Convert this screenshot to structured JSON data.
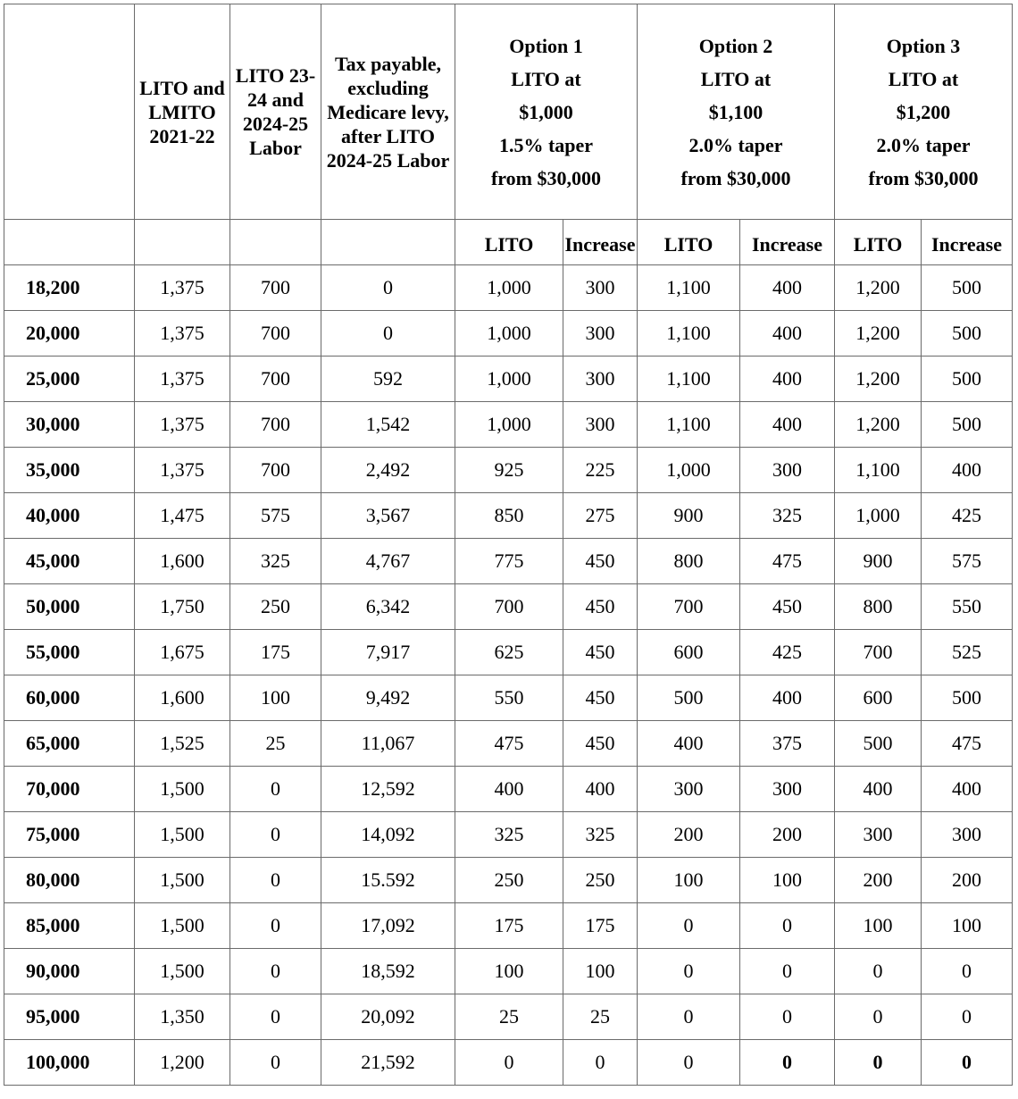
{
  "header": {
    "columns": [
      "",
      "LITO and LMITO 2021-22",
      "LITO 23-24 and 2024-25 Labor",
      "Tax payable, excluding Medicare levy, after LITO 2024-25 Labor"
    ],
    "options": [
      {
        "title": "Option 1",
        "lines": [
          "LITO at",
          "$1,000",
          "1.5% taper",
          "from $30,000"
        ]
      },
      {
        "title": "Option 2",
        "lines": [
          "LITO at",
          "$1,100",
          "2.0% taper",
          "from $30,000"
        ]
      },
      {
        "title": "Option 3",
        "lines": [
          "LITO at",
          "$1,200",
          "2.0% taper",
          "from $30,000"
        ]
      }
    ],
    "sub_labels": [
      "LITO",
      "Increase",
      "LITO",
      "Increase",
      "LITO",
      "Increase"
    ]
  },
  "rows": [
    {
      "cells": [
        "18,200",
        "1,375",
        "700",
        "0",
        "1,000",
        "300",
        "1,100",
        "400",
        "1,200",
        "500"
      ]
    },
    {
      "cells": [
        "20,000",
        "1,375",
        "700",
        "0",
        "1,000",
        "300",
        "1,100",
        "400",
        "1,200",
        "500"
      ]
    },
    {
      "cells": [
        "25,000",
        "1,375",
        "700",
        "592",
        "1,000",
        "300",
        "1,100",
        "400",
        "1,200",
        "500"
      ]
    },
    {
      "cells": [
        "30,000",
        "1,375",
        "700",
        "1,542",
        "1,000",
        "300",
        "1,100",
        "400",
        "1,200",
        "500"
      ]
    },
    {
      "cells": [
        "35,000",
        "1,375",
        "700",
        "2,492",
        "925",
        "225",
        "1,000",
        "300",
        "1,100",
        "400"
      ]
    },
    {
      "cells": [
        "40,000",
        "1,475",
        "575",
        "3,567",
        "850",
        "275",
        "900",
        "325",
        "1,000",
        "425"
      ]
    },
    {
      "cells": [
        "45,000",
        "1,600",
        "325",
        "4,767",
        "775",
        "450",
        "800",
        "475",
        "900",
        "575"
      ]
    },
    {
      "cells": [
        "50,000",
        "1,750",
        "250",
        "6,342",
        "700",
        "450",
        "700",
        "450",
        "800",
        "550"
      ]
    },
    {
      "cells": [
        "55,000",
        "1,675",
        "175",
        "7,917",
        "625",
        "450",
        "600",
        "425",
        "700",
        "525"
      ]
    },
    {
      "cells": [
        "60,000",
        "1,600",
        "100",
        "9,492",
        "550",
        "450",
        "500",
        "400",
        "600",
        "500"
      ]
    },
    {
      "cells": [
        "65,000",
        "1,525",
        "25",
        "11,067",
        "475",
        "450",
        "400",
        "375",
        "500",
        "475"
      ]
    },
    {
      "cells": [
        "70,000",
        "1,500",
        "0",
        "12,592",
        "400",
        "400",
        "300",
        "300",
        "400",
        "400"
      ]
    },
    {
      "cells": [
        "75,000",
        "1,500",
        "0",
        "14,092",
        "325",
        "325",
        "200",
        "200",
        "300",
        "300"
      ]
    },
    {
      "cells": [
        "80,000",
        "1,500",
        "0",
        "15.592",
        "250",
        "250",
        "100",
        "100",
        "200",
        "200"
      ]
    },
    {
      "cells": [
        "85,000",
        "1,500",
        "0",
        "17,092",
        "175",
        "175",
        "0",
        "0",
        "100",
        "100"
      ]
    },
    {
      "cells": [
        "90,000",
        "1,500",
        "0",
        "18,592",
        "100",
        "100",
        "0",
        "0",
        "0",
        "0"
      ]
    },
    {
      "cells": [
        "95,000",
        "1,350",
        "0",
        "20,092",
        "25",
        "25",
        "0",
        "0",
        "0",
        "0"
      ]
    },
    {
      "cells": [
        "100,000",
        "1,200",
        "0",
        "21,592",
        "0",
        "0",
        "0",
        "0",
        "0",
        "0"
      ],
      "bold_cells": [
        7,
        8,
        9
      ]
    }
  ]
}
